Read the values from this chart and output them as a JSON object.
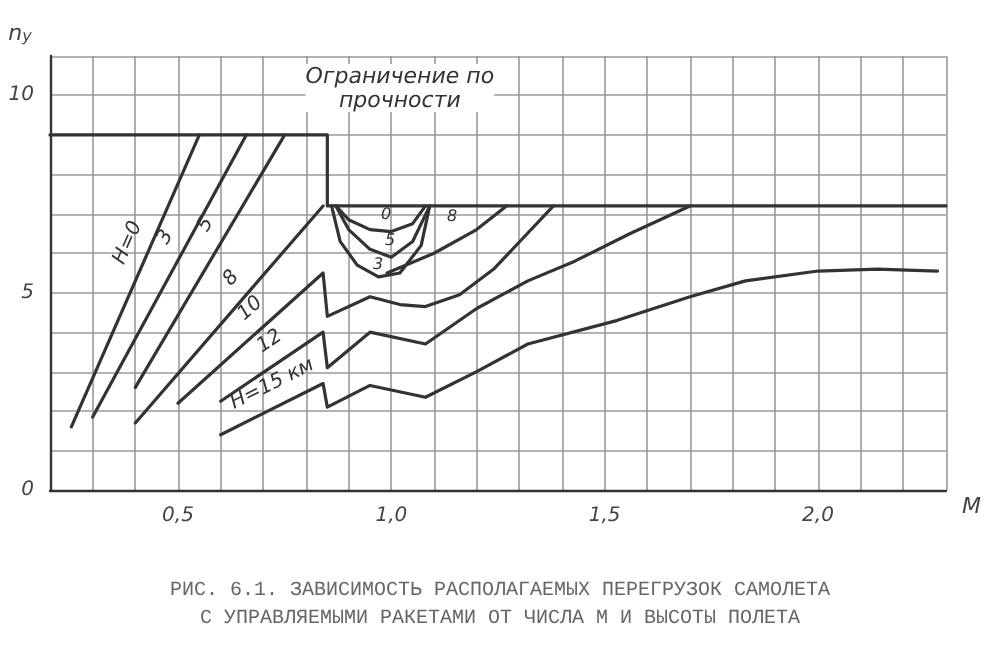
{
  "chart_data": {
    "type": "line",
    "title": "РИС. 6.1. ЗАВИСИМОСТЬ РАСПОЛАГАЕМЫХ ПЕРЕГРУЗОК САМОЛЕТА\nС УПРАВЛЯЕМЫМИ РАКЕТАМИ ОТ ЧИСЛА М И ВЫСОТЫ ПОЛЕТА",
    "xlabel": "M",
    "ylabel": "n$_{y}$",
    "xlim": [
      0.2,
      2.3
    ],
    "ylim": [
      0,
      11
    ],
    "xticks": [
      {
        "value": 0.2,
        "label": null
      },
      {
        "value": 0.3,
        "label": null
      },
      {
        "value": 0.4,
        "label": null
      },
      {
        "value": 0.5,
        "label": "0,5"
      },
      {
        "value": 0.6,
        "label": null
      },
      {
        "value": 0.7,
        "label": null
      },
      {
        "value": 0.8,
        "label": null
      },
      {
        "value": 0.9,
        "label": null
      },
      {
        "value": 1.0,
        "label": "1,0"
      },
      {
        "value": 1.1,
        "label": null
      },
      {
        "value": 1.2,
        "label": null
      },
      {
        "value": 1.3,
        "label": null
      },
      {
        "value": 1.4,
        "label": null
      },
      {
        "value": 1.5,
        "label": "1,5"
      },
      {
        "value": 1.6,
        "label": null
      },
      {
        "value": 1.7,
        "label": null
      },
      {
        "value": 1.8,
        "label": null
      },
      {
        "value": 1.9,
        "label": null
      },
      {
        "value": 2.0,
        "label": "2,0"
      },
      {
        "value": 2.1,
        "label": null
      },
      {
        "value": 2.2,
        "label": null
      },
      {
        "value": 2.3,
        "label": null
      }
    ],
    "yticks": [
      0,
      {
        "value": 1,
        "label": null
      },
      {
        "value": 2,
        "label": null
      },
      {
        "value": 3,
        "label": null
      },
      {
        "value": 4,
        "label": null
      },
      5,
      {
        "value": 6,
        "label": null
      },
      {
        "value": 7,
        "label": null
      },
      {
        "value": 8,
        "label": null
      },
      {
        "value": 9,
        "label": null
      },
      10,
      {
        "value": 11,
        "label": null
      }
    ],
    "grid": true,
    "legend": false,
    "marker": "none",
    "line_style": "solid",
    "series": [
      {
        "color": "#333333",
        "x": [
          0.2,
          0.85,
          0.85,
          2.3
        ],
        "values": [
          9,
          9,
          7.2,
          7.2
        ]
      },
      {
        "name": "H=0",
        "color": "#333333",
        "x": [
          0.25,
          0.55,
          0.56,
          0.87,
          0.9,
          0.95,
          1.0,
          1.05,
          1.08
        ],
        "values": [
          1.6,
          9.0,
          null,
          7.2,
          6.85,
          6.6,
          6.55,
          6.75,
          7.2
        ]
      },
      {
        "name": "3",
        "color": "#333333",
        "x": [
          0.3,
          0.66,
          0.67,
          0.86,
          0.88,
          0.92,
          0.97,
          1.02,
          1.07,
          1.09
        ],
        "values": [
          1.85,
          9.0,
          null,
          7.2,
          6.3,
          5.7,
          5.4,
          5.5,
          6.2,
          7.2
        ]
      },
      {
        "name": "5",
        "color": "#333333",
        "x": [
          0.4,
          0.75,
          0.76,
          0.87,
          0.9,
          0.95,
          1.0,
          1.05,
          1.09
        ],
        "values": [
          2.6,
          9.0,
          null,
          7.2,
          6.6,
          6.1,
          5.9,
          6.3,
          7.2
        ]
      },
      {
        "name": "8",
        "color": "#333333",
        "x": [
          0.4,
          0.84,
          0.9,
          0.99,
          1.1,
          1.2,
          1.27
        ],
        "values": [
          1.7,
          7.2,
          null,
          5.5,
          6.0,
          6.6,
          7.2
        ]
      },
      {
        "name": "10",
        "color": "#333333",
        "x": [
          0.5,
          0.84,
          0.85,
          0.95,
          1.02,
          1.08,
          1.16,
          1.24,
          1.31,
          1.38
        ],
        "values": [
          2.2,
          5.5,
          4.4,
          4.9,
          4.7,
          4.65,
          4.95,
          5.6,
          6.4,
          7.2
        ]
      },
      {
        "name": "12",
        "color": "#333333",
        "x": [
          0.6,
          0.84,
          0.85,
          0.95,
          1.08,
          1.2,
          1.32,
          1.43,
          1.56,
          1.7
        ],
        "values": [
          2.25,
          4.0,
          3.1,
          4.0,
          3.7,
          4.6,
          5.3,
          5.8,
          6.5,
          7.2
        ]
      },
      {
        "name": "H=15 км",
        "color": "#333333",
        "x": [
          0.6,
          0.84,
          0.85,
          0.95,
          1.08,
          1.2,
          1.32,
          1.53,
          1.7,
          1.83,
          2.0,
          2.14,
          2.28
        ],
        "values": [
          1.4,
          2.7,
          2.1,
          2.65,
          2.35,
          3.0,
          3.7,
          4.3,
          4.9,
          5.3,
          5.55,
          5.6,
          5.55
        ]
      }
    ],
    "annotations": [
      "Ограничение по\nпрочности",
      "0",
      "5",
      "3",
      "8"
    ]
  }
}
